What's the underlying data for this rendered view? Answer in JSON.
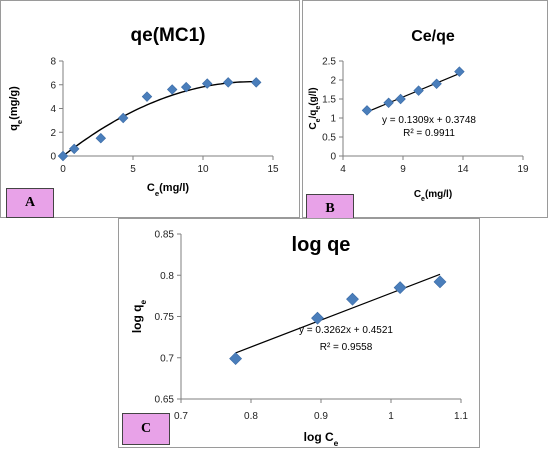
{
  "panels": {
    "A": {
      "label": "A"
    },
    "B": {
      "label": "B"
    },
    "C": {
      "label": "C"
    }
  },
  "colors": {
    "marker": "#4a7ebb",
    "line": "#000000",
    "tag_fill": "#e8a2e8"
  },
  "chart_data": [
    {
      "id": "A",
      "type": "scatter",
      "title": "qe(MC1)",
      "xlabel": {
        "base": "C",
        "sub": "e",
        "rest": "(mg/l)"
      },
      "ylabel": {
        "base": "q",
        "sub": "e",
        "rest": "(mg/g)"
      },
      "xlim": [
        0,
        15
      ],
      "ylim": [
        0,
        8
      ],
      "xticks": [
        0,
        5,
        10,
        15
      ],
      "yticks": [
        0,
        2,
        4,
        6,
        8
      ],
      "x": [
        0.0,
        0.8,
        2.7,
        4.3,
        6.0,
        7.8,
        8.8,
        10.3,
        11.8,
        13.8
      ],
      "y": [
        0.0,
        0.6,
        1.5,
        3.2,
        5.0,
        5.6,
        5.8,
        6.1,
        6.2,
        6.2
      ],
      "trendline": {
        "kind": "polynomial",
        "coefficients": [
          -0.0338,
          0.92,
          0.0
        ]
      },
      "grid": false
    },
    {
      "id": "B",
      "type": "scatter",
      "title": "Ce/qe",
      "xlabel": {
        "base": "C",
        "sub": "e",
        "rest": "(mg/l)"
      },
      "ylabel": {
        "base": "C",
        "sub": "e",
        "mid": "/q",
        "sub2": "e",
        "rest": "(g/l)"
      },
      "xlim": [
        4,
        19
      ],
      "ylim": [
        0,
        2.5
      ],
      "xticks": [
        4,
        9,
        14,
        19
      ],
      "yticks": [
        0,
        0.5,
        1,
        1.5,
        2,
        2.5
      ],
      "x": [
        6.0,
        7.8,
        8.8,
        10.3,
        11.8,
        13.7
      ],
      "y": [
        1.2,
        1.4,
        1.5,
        1.72,
        1.9,
        2.22
      ],
      "trendline": {
        "kind": "linear",
        "slope": 0.1309,
        "intercept": 0.3748,
        "range": [
          6.0,
          13.7
        ]
      },
      "equation": "y = 0.1309x + 0.3748",
      "r2": "R² = 0.9911",
      "grid": false
    },
    {
      "id": "C",
      "type": "scatter",
      "title": "log qe",
      "xlabel": {
        "base": "log C",
        "sub": "e",
        "rest": ""
      },
      "ylabel": {
        "base": "log q",
        "sub": "e",
        "rest": ""
      },
      "xlim": [
        0.7,
        1.1
      ],
      "ylim": [
        0.65,
        0.85
      ],
      "xticks": [
        0.7,
        0.8,
        0.9,
        1,
        1.1
      ],
      "yticks": [
        0.65,
        0.7,
        0.75,
        0.8,
        0.85
      ],
      "xtick_labels": [
        "0.7",
        "0.8",
        "0.9",
        "1",
        "1.1"
      ],
      "ytick_labels": [
        "0.65",
        "0.7",
        "0.75",
        "0.8",
        "0.85"
      ],
      "x": [
        0.778,
        0.895,
        0.945,
        1.013,
        1.07
      ],
      "y": [
        0.699,
        0.748,
        0.771,
        0.785,
        0.792
      ],
      "trendline": {
        "kind": "linear",
        "slope": 0.3262,
        "intercept": 0.4521,
        "range": [
          0.778,
          1.07
        ]
      },
      "equation": "y = 0.3262x + 0.4521",
      "r2": "R² = 0.9558",
      "grid": false
    }
  ]
}
